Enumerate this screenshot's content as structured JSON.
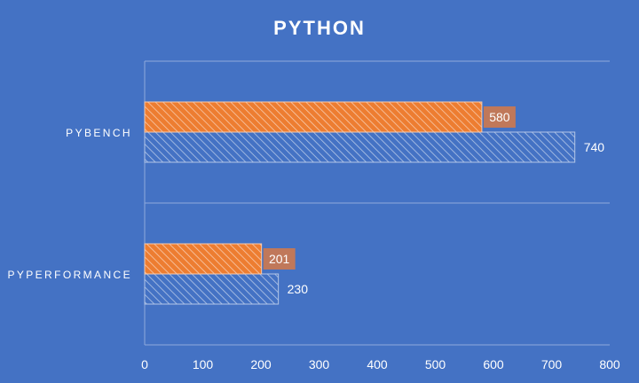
{
  "chart_data": {
    "type": "bar",
    "orientation": "horizontal",
    "title": "PYTHON",
    "xlabel": "",
    "ylabel": "",
    "categories": [
      "PYBENCH",
      "PYPERFORMANCE"
    ],
    "series": [
      {
        "values": [
          740,
          230
        ],
        "color": "#4472c4",
        "hatch_color": "#b4c7e7",
        "label_style": "plain"
      },
      {
        "values": [
          580,
          201
        ],
        "color": "#ed7d31",
        "hatch_color": "#f8cbad",
        "label_style": "boxed",
        "label_box_color": "#c0785a"
      }
    ],
    "xlim": [
      0,
      800
    ],
    "xticks": [
      0,
      100,
      200,
      300,
      400,
      500,
      600,
      700,
      800
    ],
    "grid": {
      "vertical": false,
      "horizontal_category_separators": true
    },
    "legend": "none",
    "background": "#4472c4"
  }
}
